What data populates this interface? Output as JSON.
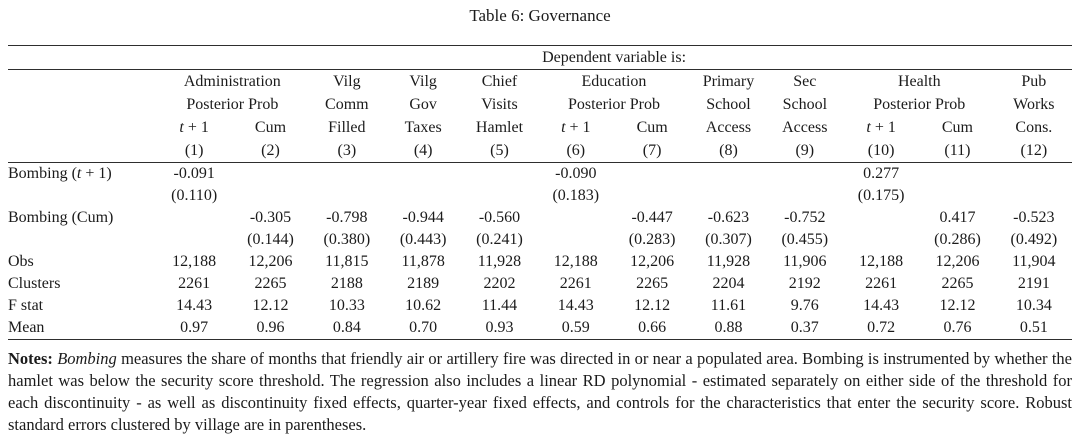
{
  "title": "Table 6: Governance",
  "colors": {
    "text": "#1b1b1b",
    "rule": "#2e2e2e",
    "background": "#ffffff"
  },
  "table": {
    "dependent_variable_label": "Dependent variable is:",
    "column_groups": [
      {
        "label": "Administration",
        "span": 2
      },
      {
        "label": "Vilg",
        "span": 1
      },
      {
        "label": "Vilg",
        "span": 1
      },
      {
        "label": "Chief",
        "span": 1
      },
      {
        "label": "Education",
        "span": 2
      },
      {
        "label": "Primary",
        "span": 1
      },
      {
        "label": "Sec",
        "span": 1
      },
      {
        "label": "Health",
        "span": 2
      },
      {
        "label": "Pub",
        "span": 1
      }
    ],
    "column_subgroups": [
      {
        "label": "Posterior Prob",
        "span": 2
      },
      {
        "label": "Comm",
        "span": 1
      },
      {
        "label": "Gov",
        "span": 1
      },
      {
        "label": "Visits",
        "span": 1
      },
      {
        "label": "Posterior Prob",
        "span": 2
      },
      {
        "label": "School",
        "span": 1
      },
      {
        "label": "School",
        "span": 1
      },
      {
        "label": "Posterior Prob",
        "span": 2
      },
      {
        "label": "Works",
        "span": 1
      }
    ],
    "column_measures": [
      "t + 1",
      "Cum",
      "Filled",
      "Taxes",
      "Hamlet",
      "t + 1",
      "Cum",
      "Access",
      "Access",
      "t + 1",
      "Cum",
      "Cons."
    ],
    "column_numbers": [
      "(1)",
      "(2)",
      "(3)",
      "(4)",
      "(5)",
      "(6)",
      "(7)",
      "(8)",
      "(9)",
      "(10)",
      "(11)",
      "(12)"
    ],
    "rows": [
      {
        "label": "Bombing (t + 1)",
        "values": [
          "-0.091",
          "",
          "",
          "",
          "",
          "-0.090",
          "",
          "",
          "",
          "0.277",
          "",
          ""
        ]
      },
      {
        "label": "",
        "values": [
          "(0.110)",
          "",
          "",
          "",
          "",
          "(0.183)",
          "",
          "",
          "",
          "(0.175)",
          "",
          ""
        ]
      },
      {
        "label": "Bombing (Cum)",
        "values": [
          "",
          "-0.305",
          "-0.798",
          "-0.944",
          "-0.560",
          "",
          "-0.447",
          "-0.623",
          "-0.752",
          "",
          "0.417",
          "-0.523"
        ]
      },
      {
        "label": "",
        "values": [
          "",
          "(0.144)",
          "(0.380)",
          "(0.443)",
          "(0.241)",
          "",
          "(0.283)",
          "(0.307)",
          "(0.455)",
          "",
          "(0.286)",
          "(0.492)"
        ]
      },
      {
        "label": "Obs",
        "values": [
          "12,188",
          "12,206",
          "11,815",
          "11,878",
          "11,928",
          "12,188",
          "12,206",
          "11,928",
          "11,906",
          "12,188",
          "12,206",
          "11,904"
        ]
      },
      {
        "label": "Clusters",
        "values": [
          "2261",
          "2265",
          "2188",
          "2189",
          "2202",
          "2261",
          "2265",
          "2204",
          "2192",
          "2261",
          "2265",
          "2191"
        ]
      },
      {
        "label": "F stat",
        "values": [
          "14.43",
          "12.12",
          "10.33",
          "10.62",
          "11.44",
          "14.43",
          "12.12",
          "11.61",
          "9.76",
          "14.43",
          "12.12",
          "10.34"
        ]
      },
      {
        "label": "Mean",
        "values": [
          "0.97",
          "0.96",
          "0.84",
          "0.70",
          "0.93",
          "0.59",
          "0.66",
          "0.88",
          "0.37",
          "0.72",
          "0.76",
          "0.51"
        ]
      }
    ]
  },
  "notes": {
    "prefix": "Notes:",
    "segments": [
      {
        "text": " Bombing",
        "style": "italic"
      },
      {
        "text": " measures the share of months that friendly air or artillery fire was directed in or near a populated area. Bombing is instrumented by whether the hamlet was below the security score threshold. The regression also includes a linear RD polynomial - estimated separately on either side of the threshold for each discontinuity - as well as discontinuity fixed effects, quarter-year fixed effects, and controls for the characteristics that enter the security score. Robust standard errors clustered by village are in parentheses.",
        "style": "normal"
      }
    ]
  }
}
